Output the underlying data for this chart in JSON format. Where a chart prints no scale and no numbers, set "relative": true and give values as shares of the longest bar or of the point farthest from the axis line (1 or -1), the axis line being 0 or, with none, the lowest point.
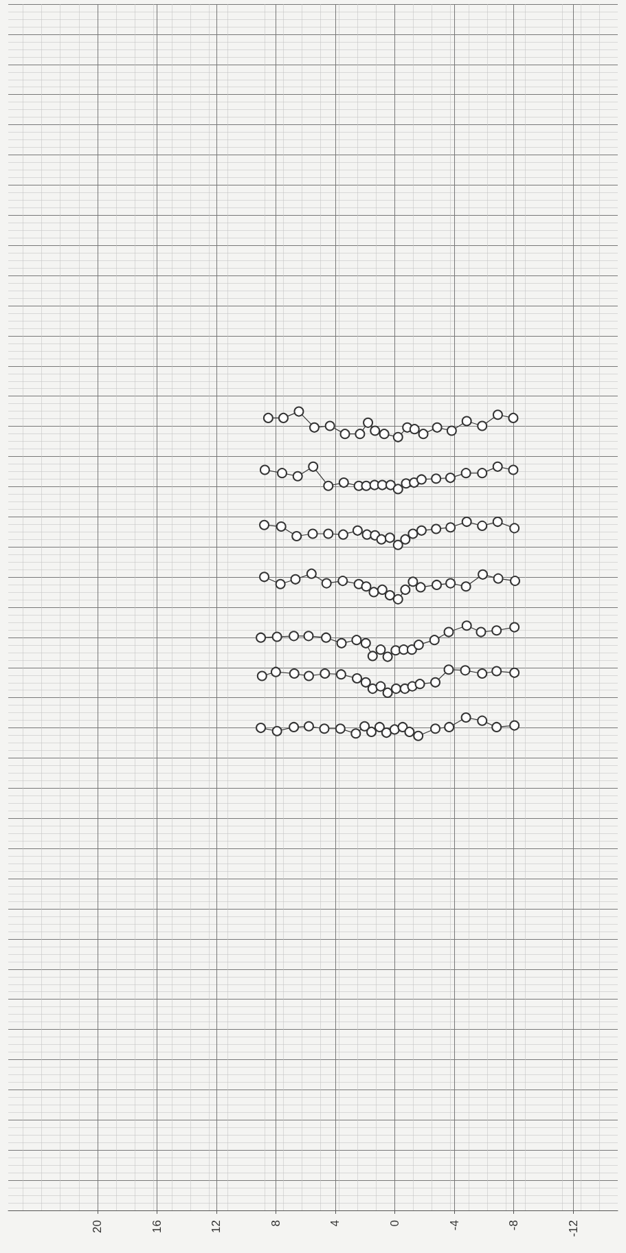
{
  "chart_data": {
    "type": "line",
    "relative": true,
    "xlim": [
      26,
      -15
    ],
    "xticks": [
      20,
      16,
      12,
      8,
      4,
      0,
      -4,
      -8,
      -12
    ],
    "grid": true,
    "marker": "circle",
    "line_style": "solid",
    "series": [
      {
        "color": "#333333",
        "x": [
          8.51,
          7.49,
          6.45,
          5.41,
          4.36,
          3.35,
          2.34,
          1.8,
          1.33,
          0.71,
          -0.22,
          -0.84,
          -1.33,
          -1.92,
          -2.85,
          -3.83,
          -4.84,
          -5.88,
          -6.93,
          -7.97
        ],
        "values": [
          0.992,
          0.992,
          1.0,
          0.98,
          0.982,
          0.972,
          0.972,
          0.986,
          0.976,
          0.972,
          0.968,
          0.98,
          0.978,
          0.972,
          0.98,
          0.976,
          0.988,
          0.982,
          0.996,
          0.992
        ]
      },
      {
        "color": "#333333",
        "x": [
          8.74,
          7.58,
          6.53,
          5.49,
          4.47,
          3.43,
          2.42,
          1.92,
          1.36,
          0.84,
          0.28,
          -0.22,
          -0.76,
          -1.3,
          -1.8,
          -2.78,
          -3.74,
          -4.79,
          -5.88,
          -6.92,
          -7.97
        ],
        "values": [
          0.927,
          0.923,
          0.919,
          0.931,
          0.907,
          0.911,
          0.907,
          0.907,
          0.908,
          0.908,
          0.908,
          0.903,
          0.91,
          0.911,
          0.915,
          0.916,
          0.917,
          0.923,
          0.923,
          0.931,
          0.927
        ]
      },
      {
        "color": "#333333",
        "x": [
          8.78,
          7.64,
          6.6,
          5.52,
          4.47,
          3.47,
          2.5,
          1.87,
          1.33,
          0.9,
          0.33,
          -0.22,
          -0.71,
          -1.22,
          -1.8,
          -2.78,
          -3.75,
          -4.84,
          -5.88,
          -6.92,
          -8.05
        ],
        "values": [
          0.858,
          0.856,
          0.844,
          0.847,
          0.847,
          0.846,
          0.851,
          0.846,
          0.845,
          0.84,
          0.842,
          0.833,
          0.84,
          0.847,
          0.851,
          0.853,
          0.855,
          0.862,
          0.857,
          0.862,
          0.854
        ]
      },
      {
        "color": "#333333",
        "x": [
          8.78,
          7.69,
          6.68,
          5.6,
          4.59,
          3.5,
          2.42,
          1.92,
          1.41,
          0.84,
          0.33,
          -0.22,
          -0.71,
          -1.22,
          -1.74,
          -2.82,
          -3.75,
          -4.79,
          -5.92,
          -6.96,
          -8.09
        ],
        "values": [
          0.793,
          0.784,
          0.79,
          0.797,
          0.785,
          0.788,
          0.784,
          0.781,
          0.774,
          0.777,
          0.77,
          0.765,
          0.777,
          0.787,
          0.78,
          0.783,
          0.785,
          0.781,
          0.796,
          0.791,
          0.788
        ]
      },
      {
        "color": "#333333",
        "x": [
          9.01,
          7.92,
          6.79,
          5.8,
          4.62,
          3.58,
          2.57,
          1.95,
          1.49,
          0.95,
          0.48,
          -0.06,
          -0.6,
          -1.15,
          -1.61,
          -2.67,
          -3.63,
          -4.84,
          -5.8,
          -6.85,
          -8.05
        ],
        "values": [
          0.717,
          0.718,
          0.719,
          0.719,
          0.717,
          0.71,
          0.714,
          0.71,
          0.694,
          0.702,
          0.693,
          0.701,
          0.702,
          0.702,
          0.708,
          0.714,
          0.724,
          0.732,
          0.724,
          0.726,
          0.73
        ]
      },
      {
        "color": "#333333",
        "x": [
          8.93,
          8.0,
          6.76,
          5.78,
          4.7,
          3.61,
          2.54,
          1.95,
          1.49,
          0.95,
          0.48,
          -0.09,
          -0.68,
          -1.18,
          -1.69,
          -2.73,
          -3.63,
          -4.74,
          -5.88,
          -6.85,
          -8.05
        ],
        "values": [
          0.669,
          0.674,
          0.672,
          0.669,
          0.672,
          0.671,
          0.666,
          0.661,
          0.653,
          0.656,
          0.648,
          0.653,
          0.653,
          0.656,
          0.659,
          0.661,
          0.677,
          0.676,
          0.672,
          0.675,
          0.673
        ]
      },
      {
        "color": "#333333",
        "x": [
          9.01,
          7.92,
          6.79,
          5.78,
          4.74,
          3.66,
          2.62,
          2.03,
          1.57,
          1.02,
          0.56,
          0.01,
          -0.53,
          -0.99,
          -1.58,
          -2.73,
          -3.66,
          -4.79,
          -5.88,
          -6.85,
          -8.05
        ],
        "values": [
          0.604,
          0.6,
          0.605,
          0.606,
          0.603,
          0.603,
          0.597,
          0.606,
          0.599,
          0.605,
          0.598,
          0.602,
          0.605,
          0.599,
          0.594,
          0.603,
          0.605,
          0.617,
          0.613,
          0.605,
          0.607
        ]
      }
    ]
  }
}
